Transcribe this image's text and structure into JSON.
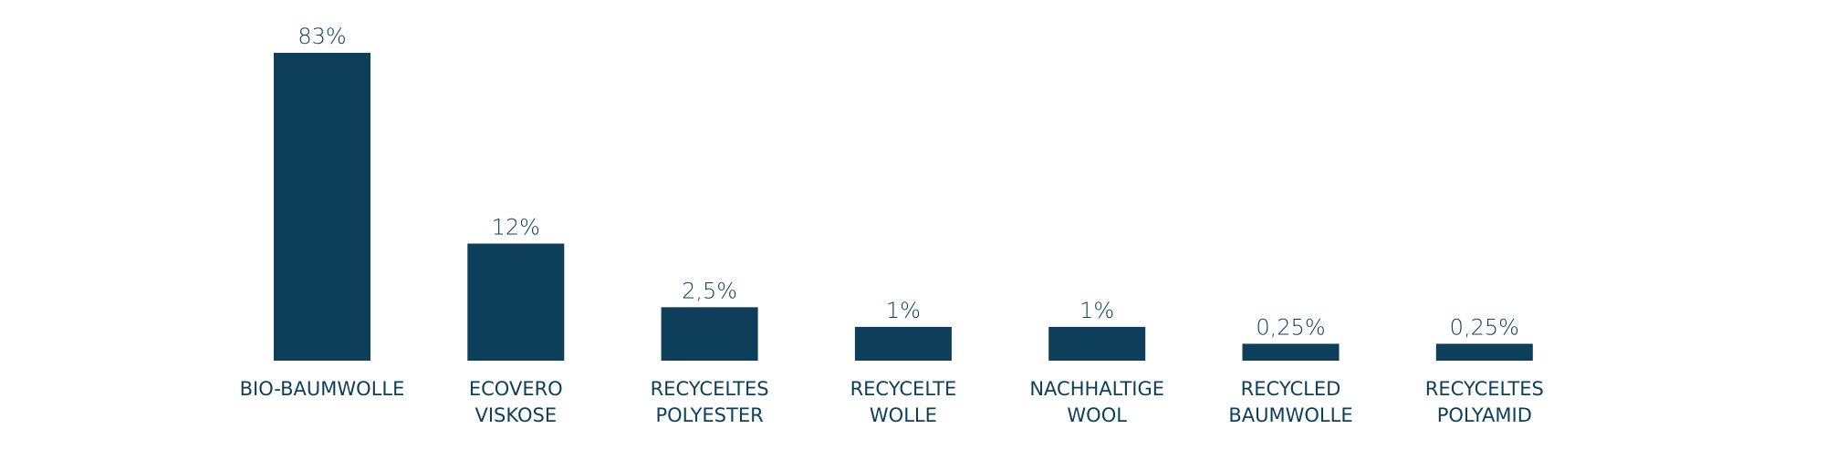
{
  "chart_data": {
    "type": "bar",
    "categories": [
      [
        "BIO-BAUMWOLLE"
      ],
      [
        "ECOVERO",
        "VISKOSE"
      ],
      [
        "RECYCELTES",
        "POLYESTER"
      ],
      [
        "RECYCELTE",
        "WOLLE"
      ],
      [
        "NACHHALTIGE",
        "WOOL"
      ],
      [
        "RECYCLED",
        "BAUMWOLLE"
      ],
      [
        "RECYCELTES",
        "POLYAMID"
      ]
    ],
    "values": [
      83,
      12,
      2.5,
      1,
      1,
      0.25,
      0.25
    ],
    "value_labels": [
      "83%",
      "12%",
      "2,5%",
      "1%",
      "1%",
      "0,25%",
      "0,25%"
    ],
    "color": "#0d3f5a",
    "yscale": "sqrt"
  }
}
